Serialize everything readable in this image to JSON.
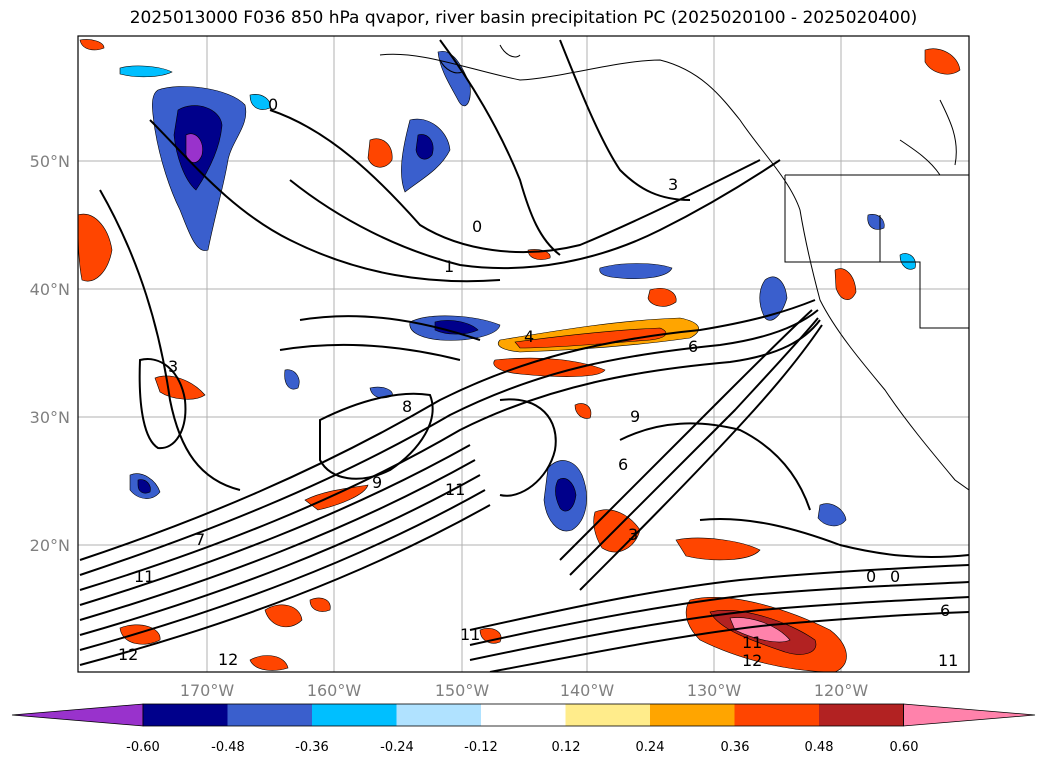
{
  "title": "2025013000 F036 850 hPa qvapor, river basin precipitation PC (2025020100 - 2025020400)",
  "map": {
    "lon_ticks": [
      "170°W",
      "160°W",
      "150°W",
      "140°W",
      "130°W",
      "120°W"
    ],
    "lat_ticks": [
      "50°N",
      "40°N",
      "30°N",
      "20°N"
    ],
    "contour_labels": [
      "0",
      "0",
      "1",
      "3",
      "4",
      "6",
      "6",
      "8",
      "9",
      "11",
      "11",
      "12",
      "12",
      "3",
      "7",
      "9",
      "11",
      "0",
      "0",
      "3",
      "11",
      "6",
      "12",
      "11"
    ]
  },
  "colorbar": {
    "colors": [
      "#9932cc",
      "#00008b",
      "#3a5fcd",
      "#00bfff",
      "#b0e2ff",
      "#ffffff",
      "#ffec8b",
      "#ffa500",
      "#ff4500",
      "#b22222",
      "#ff82ab"
    ],
    "labels": [
      "-0.60",
      "-0.48",
      "-0.36",
      "-0.24",
      "-0.12",
      "0.12",
      "0.24",
      "0.36",
      "0.48",
      "0.60"
    ]
  }
}
